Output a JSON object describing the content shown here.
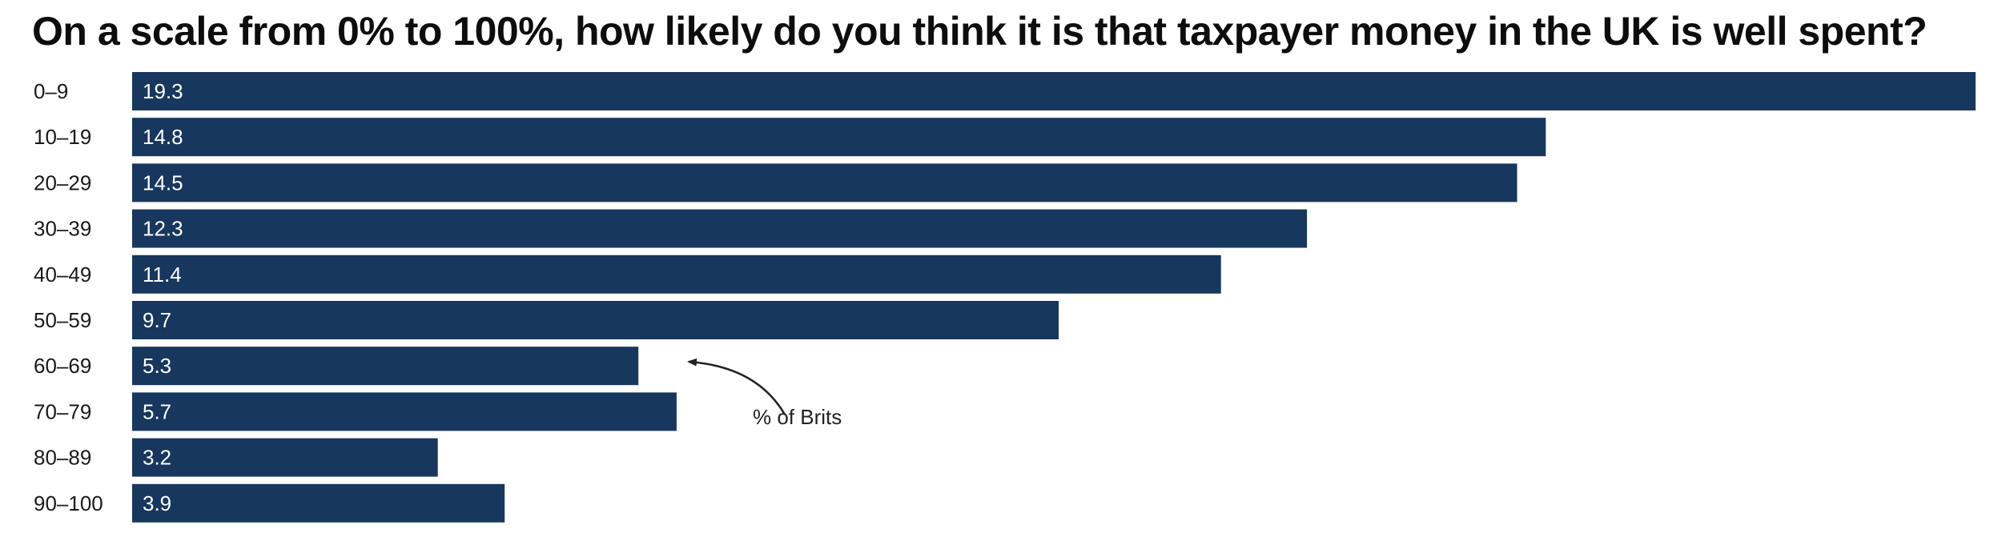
{
  "chart_data": {
    "type": "bar",
    "orientation": "horizontal",
    "title": "On a scale from 0% to 100%, how likely do you think it is that taxpayer money in the UK is well spent?",
    "categories": [
      "0–9",
      "10–19",
      "20–29",
      "30–39",
      "40–49",
      "50–59",
      "60–69",
      "70–79",
      "80–89",
      "90–100"
    ],
    "values": [
      19.3,
      14.8,
      14.5,
      12.3,
      11.4,
      9.7,
      5.3,
      5.7,
      3.2,
      3.9
    ],
    "xlim": [
      0,
      19.3
    ],
    "grid": false,
    "data_labels": true,
    "annotation": "% of Brits",
    "bar_color": "#17375e"
  }
}
